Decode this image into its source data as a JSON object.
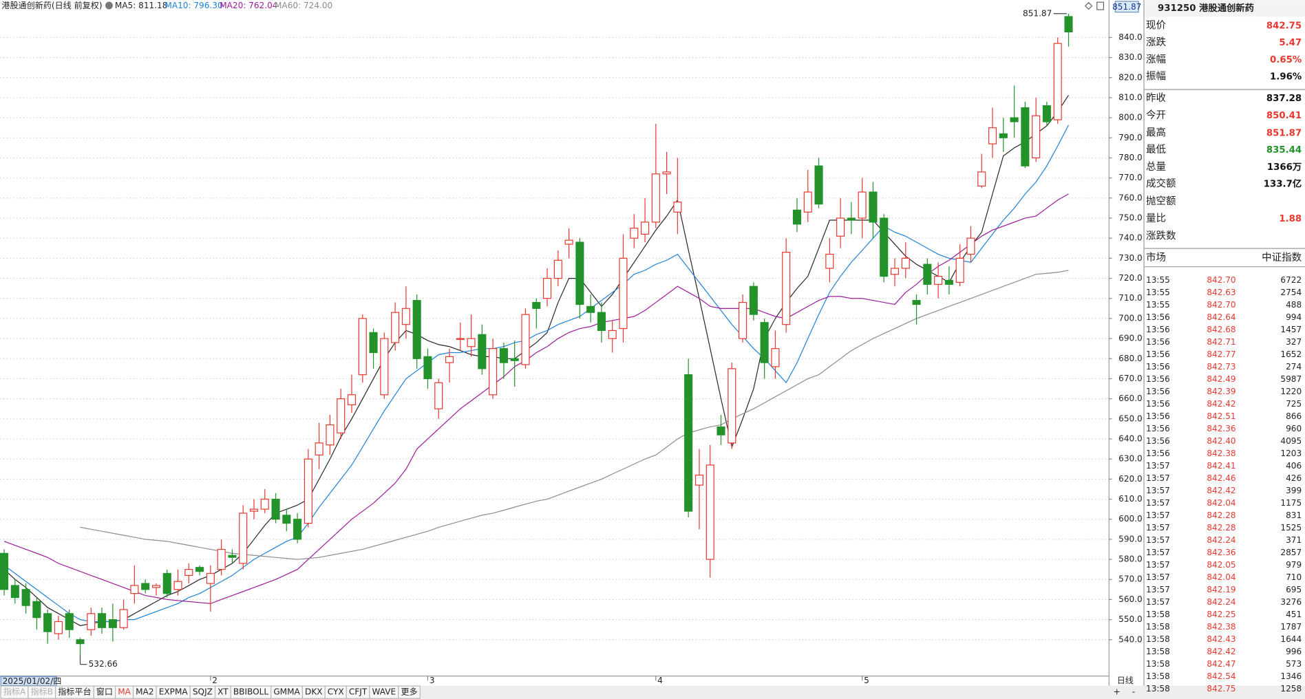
{
  "chart_data": {
    "type": "candlestick",
    "title": "港股通创新药(日线 前复权)",
    "categories": [
      "2025/01/02/四",
      null,
      null,
      null,
      null,
      null,
      null,
      null,
      null,
      null,
      null,
      null,
      null,
      null,
      null,
      null,
      null,
      null,
      null,
      "2",
      null,
      null,
      null,
      null,
      null,
      null,
      null,
      null,
      null,
      null,
      null,
      null,
      null,
      null,
      null,
      null,
      null,
      null,
      null,
      "3",
      null,
      null,
      null,
      null,
      null,
      null,
      null,
      null,
      null,
      null,
      null,
      null,
      null,
      null,
      null,
      null,
      null,
      null,
      null,
      null,
      "4",
      null,
      null,
      null,
      null,
      null,
      null,
      null,
      null,
      null,
      null,
      null,
      null,
      null,
      null,
      null,
      null,
      null,
      null,
      "5",
      null,
      null,
      null,
      null,
      null,
      null,
      null,
      null,
      null,
      null,
      null,
      null,
      null,
      null,
      null,
      null,
      null,
      null,
      null
    ],
    "open": [
      583,
      567,
      565,
      559,
      553,
      543,
      553,
      540,
      545,
      553,
      550,
      546,
      563,
      568,
      566,
      573,
      565,
      572,
      576,
      568,
      575,
      582,
      578,
      604,
      605,
      610,
      602,
      600,
      598,
      632,
      637,
      643,
      657,
      672,
      693,
      662,
      688,
      697,
      709,
      681,
      655,
      678,
      690,
      686,
      692,
      662,
      685,
      680,
      677,
      708,
      710,
      720,
      737,
      738,
      706,
      703,
      690,
      695,
      740,
      742,
      748,
      772,
      753,
      672,
      617,
      580,
      646,
      638,
      690,
      716,
      698,
      676,
      697,
      754,
      753,
      776,
      725,
      741,
      750,
      750,
      763,
      750,
      722,
      725,
      709,
      727,
      717,
      719,
      718,
      732,
      766,
      787,
      792,
      800,
      805,
      780,
      806,
      799,
      850.41
    ],
    "high": [
      585,
      570,
      568,
      561,
      555,
      552,
      555,
      541,
      556,
      556,
      558,
      560,
      577,
      570,
      568,
      575,
      575,
      578,
      577,
      577,
      590,
      585,
      607,
      610,
      615,
      613,
      605,
      603,
      635,
      648,
      652,
      665,
      672,
      702,
      695,
      693,
      708,
      716,
      712,
      685,
      670,
      685,
      698,
      702,
      697,
      690,
      688,
      689,
      705,
      710,
      725,
      734,
      745,
      740,
      712,
      708,
      699,
      742,
      752,
      760,
      797,
      783,
      780,
      680,
      635,
      637,
      652,
      678,
      712,
      718,
      700,
      694,
      740,
      760,
      774,
      780,
      740,
      760,
      758,
      770,
      768,
      752,
      730,
      738,
      712,
      730,
      728,
      726,
      737,
      746,
      782,
      805,
      800,
      816,
      808,
      810,
      808,
      840,
      851.87
    ],
    "low": [
      562,
      558,
      553,
      545,
      538,
      540,
      541,
      532.66,
      542,
      543,
      539,
      545,
      558,
      563,
      562,
      561,
      562,
      568,
      572,
      554,
      572,
      578,
      575,
      600,
      603,
      598,
      594,
      588,
      596,
      625,
      632,
      640,
      653,
      668,
      675,
      660,
      684,
      690,
      675,
      665,
      650,
      668,
      684,
      681,
      672,
      660,
      670,
      666,
      675,
      695,
      706,
      716,
      730,
      700,
      698,
      688,
      683,
      688,
      735,
      738,
      745,
      762,
      742,
      601,
      595,
      571,
      637,
      635,
      688,
      699,
      670,
      670,
      693,
      743,
      748,
      755,
      718,
      735,
      742,
      740,
      740,
      718,
      716,
      720,
      697,
      712,
      710,
      712,
      716,
      728,
      765,
      780,
      783,
      790,
      775,
      778,
      796,
      797,
      835.44
    ],
    "close": [
      565,
      561,
      557,
      551,
      544,
      549,
      545,
      538,
      553,
      546,
      546,
      555,
      567,
      565,
      567,
      563,
      569,
      575,
      574,
      573,
      585,
      581,
      603,
      605,
      610,
      600,
      598,
      590,
      630,
      638,
      647,
      660,
      662,
      700,
      683,
      690,
      703,
      705,
      680,
      670,
      668,
      681,
      690,
      690,
      675,
      685,
      678,
      679,
      702,
      705,
      720,
      729,
      739,
      707,
      703,
      694,
      694,
      730,
      745,
      748,
      772,
      773,
      758,
      604,
      622,
      627,
      642,
      675,
      708,
      702,
      678,
      685,
      733,
      747,
      763,
      757,
      732,
      750,
      749,
      763,
      748,
      721,
      725,
      730,
      707,
      717,
      721,
      717,
      730,
      740,
      773,
      795,
      790,
      798,
      776,
      801,
      798,
      837,
      842.75
    ],
    "up_color": "#e8382f",
    "down_color": "#23922a",
    "ma_series": [
      {
        "name": "MA5",
        "label": "MA5: 811.18",
        "color": "#262626",
        "values": [
          575,
          570,
          566,
          561,
          556,
          553,
          550,
          547,
          548,
          549,
          549,
          550,
          553,
          556,
          559,
          562,
          564,
          567,
          570,
          572,
          575,
          578,
          583,
          590,
          597,
          603,
          605,
          607,
          610,
          620,
          630,
          641,
          650,
          660,
          670,
          680,
          688,
          694,
          692,
          689,
          687,
          686,
          684,
          682,
          681,
          681,
          680,
          680,
          684,
          688,
          693,
          708,
          720,
          720,
          713,
          706,
          712,
          720,
          728,
          736,
          744,
          751,
          759,
          734,
          710,
          685,
          660,
          636,
          650,
          665,
          690,
          700,
          708,
          715,
          721,
          735,
          749,
          749,
          749,
          749,
          749,
          743,
          737,
          731,
          727,
          724,
          721,
          718,
          728,
          736,
          743,
          762,
          781,
          785,
          788,
          792,
          796,
          803,
          811.18
        ]
      },
      {
        "name": "MA10",
        "label": "MA10: 796.30",
        "color": "#1e82d6",
        "values": [
          577,
          573,
          569,
          565,
          561,
          557,
          553,
          550,
          549,
          549,
          549,
          550,
          550,
          552,
          554,
          556,
          558,
          561,
          563,
          566,
          569,
          572,
          576,
          580,
          583,
          586,
          589,
          591,
          598,
          606,
          613,
          620,
          627,
          636,
          645,
          654,
          662,
          670,
          674,
          678,
          682,
          683,
          683,
          684,
          685,
          685,
          686,
          688,
          689,
          692,
          694,
          697,
          699,
          701,
          705,
          709,
          713,
          717,
          722,
          724,
          727,
          729,
          732,
          725,
          718,
          711,
          704,
          697,
          691,
          685,
          680,
          674,
          668,
          678,
          690,
          702,
          713,
          721,
          728,
          734,
          740,
          746,
          743,
          741,
          738,
          735,
          732,
          730,
          729,
          728,
          735,
          742,
          749,
          755,
          762,
          768,
          776,
          786,
          796.3
        ]
      },
      {
        "name": "MA20",
        "label": "MA20: 762.04",
        "color": "#9c1c98",
        "values": [
          589,
          587,
          585,
          583,
          581,
          578,
          576,
          574,
          572,
          570,
          568,
          566,
          564,
          562,
          561,
          560,
          559.5,
          559,
          558.5,
          558,
          560,
          562,
          564,
          566,
          568,
          570,
          572.5,
          575,
          580,
          585,
          590,
          595,
          600,
          604,
          608,
          613,
          618,
          625,
          635,
          640,
          645,
          650,
          655,
          659,
          663,
          667,
          671,
          676,
          679,
          683,
          686,
          690,
          693,
          695,
          696,
          698,
          699,
          700,
          701,
          704,
          708,
          712,
          716,
          713,
          710,
          706,
          705,
          705,
          705,
          705,
          703,
          701,
          700,
          703,
          706,
          709,
          711,
          711,
          710,
          710,
          709,
          708,
          707,
          713,
          717,
          722,
          726,
          729,
          733,
          737,
          741,
          744,
          746,
          748,
          750,
          751,
          755,
          759,
          762.04
        ]
      },
      {
        "name": "MA60",
        "label": "MA60: 724.00",
        "color": "#8c8c8c",
        "values": [
          null,
          null,
          null,
          null,
          null,
          null,
          null,
          596,
          595,
          594,
          593,
          592,
          591,
          590,
          589.5,
          589,
          588,
          587,
          586,
          585,
          584,
          583,
          582.5,
          582,
          581.5,
          581,
          580.5,
          580,
          580.5,
          581,
          582,
          583,
          584,
          585,
          586.5,
          588,
          589.5,
          591,
          592.5,
          594,
          596,
          597.5,
          599,
          600.5,
          602,
          603,
          604.5,
          606,
          607.5,
          609,
          610,
          612,
          614,
          616,
          618,
          620,
          622.5,
          625,
          627.5,
          630,
          632,
          636,
          640,
          643,
          644.5,
          646,
          647,
          650,
          652.5,
          655,
          658,
          661,
          664,
          667,
          670,
          672,
          676,
          680,
          684,
          687,
          690,
          692.5,
          695,
          697.5,
          700,
          702,
          704,
          706,
          708,
          710,
          712,
          714,
          716,
          718,
          720,
          722,
          722.5,
          723,
          724
        ]
      }
    ],
    "ylim": [
      522.1,
      852.8
    ],
    "yticks": [
      {
        "value": 540,
        "label": "540.0"
      },
      {
        "value": 550,
        "label": "550.0"
      },
      {
        "value": 560,
        "label": "560.0"
      },
      {
        "value": 570,
        "label": "570.0"
      },
      {
        "value": 580,
        "label": "580.0"
      },
      {
        "value": 590,
        "label": "590.0"
      },
      {
        "value": 600,
        "label": "600.0"
      },
      {
        "value": 610,
        "label": "610.0"
      },
      {
        "value": 620,
        "label": "620.0"
      },
      {
        "value": 630,
        "label": "630.0"
      },
      {
        "value": 640,
        "label": "640.0"
      },
      {
        "value": 650,
        "label": "650.0"
      },
      {
        "value": 660,
        "label": "660.0"
      },
      {
        "value": 670,
        "label": "670.0"
      },
      {
        "value": 680,
        "label": "680.0"
      },
      {
        "value": 690,
        "label": "690.0"
      },
      {
        "value": 700,
        "label": "700.0"
      },
      {
        "value": 710,
        "label": "710.0"
      },
      {
        "value": 720,
        "label": "720.0"
      },
      {
        "value": 730,
        "label": "730.0"
      },
      {
        "value": 740,
        "label": "740.0"
      },
      {
        "value": 750,
        "label": "750.0"
      },
      {
        "value": 760,
        "label": "760.0"
      },
      {
        "value": 770,
        "label": "770.0"
      },
      {
        "value": 780,
        "label": "780.0"
      },
      {
        "value": 790,
        "label": "790.0"
      },
      {
        "value": 800,
        "label": "800.0"
      },
      {
        "value": 810,
        "label": "810.0"
      },
      {
        "value": 820,
        "label": "820.0"
      },
      {
        "value": 830,
        "label": "830.0"
      },
      {
        "value": 840,
        "label": "840.0"
      }
    ],
    "grid": true,
    "high_label": "851.87",
    "low_label": "532.66",
    "axis_tag": "851.87"
  },
  "toolbar": {
    "tabs": [
      {
        "text": "指标A",
        "color": "#b0b0b0"
      },
      {
        "text": "指标B",
        "color": "#b0b0b0"
      },
      {
        "text": "指标平台",
        "color": "#222222"
      },
      {
        "text": "窗口",
        "color": "#222222"
      },
      {
        "text": "MA",
        "color": "#e8382f"
      },
      {
        "text": "MA2",
        "color": "#222222"
      },
      {
        "text": "EXPMA",
        "color": "#222222"
      },
      {
        "text": "SQJZ",
        "color": "#222222"
      },
      {
        "text": "XT",
        "color": "#222222"
      },
      {
        "text": "BBIBOLL",
        "color": "#222222"
      },
      {
        "text": "GMMA",
        "color": "#222222"
      },
      {
        "text": "DKX",
        "color": "#222222"
      },
      {
        "text": "CYX",
        "color": "#222222"
      },
      {
        "text": "CFJT",
        "color": "#222222"
      },
      {
        "text": "WAVE",
        "color": "#222222"
      },
      {
        "text": "更多",
        "color": "#222222"
      }
    ],
    "period": "日线",
    "zoom_in": "+",
    "zoom_out": "-"
  },
  "quote": {
    "title": "931250 港股通创新药",
    "groups": [
      [
        {
          "label": "现价",
          "value": "842.75",
          "color": "#e8382f"
        },
        {
          "label": "涨跌",
          "value": "5.47",
          "color": "#e8382f"
        },
        {
          "label": "涨幅",
          "value": "0.65%",
          "color": "#e8382f"
        },
        {
          "label": "振幅",
          "value": "1.96%",
          "color": "#111111"
        }
      ],
      [
        {
          "label": "昨收",
          "value": "837.28",
          "color": "#111111"
        },
        {
          "label": "今开",
          "value": "850.41",
          "color": "#e8382f"
        },
        {
          "label": "最高",
          "value": "851.87",
          "color": "#e8382f"
        },
        {
          "label": "最低",
          "value": "835.44",
          "color": "#23922a"
        },
        {
          "label": "总量",
          "value": "1366万",
          "color": "#111111"
        },
        {
          "label": "成交额",
          "value": "133.7亿",
          "color": "#111111"
        },
        {
          "label": "抛空额"
        },
        {
          "label": "量比",
          "value": "1.88",
          "color": "#e8382f"
        },
        {
          "label": "涨跌数"
        }
      ]
    ],
    "market": {
      "label": "市场",
      "value": "中证指数"
    },
    "price_color": "#e8382f",
    "ticks": [
      [
        "13:55",
        "842.70",
        "6722"
      ],
      [
        "13:55",
        "842.63",
        "2754"
      ],
      [
        "13:55",
        "842.70",
        "488"
      ],
      [
        "13:56",
        "842.64",
        "994"
      ],
      [
        "13:56",
        "842.68",
        "1457"
      ],
      [
        "13:56",
        "842.71",
        "327"
      ],
      [
        "13:56",
        "842.77",
        "1652"
      ],
      [
        "13:56",
        "842.73",
        "274"
      ],
      [
        "13:56",
        "842.49",
        "5987"
      ],
      [
        "13:56",
        "842.39",
        "1220"
      ],
      [
        "13:56",
        "842.42",
        "725"
      ],
      [
        "13:56",
        "842.51",
        "866"
      ],
      [
        "13:56",
        "842.36",
        "960"
      ],
      [
        "13:56",
        "842.40",
        "4095"
      ],
      [
        "13:56",
        "842.38",
        "1203"
      ],
      [
        "13:57",
        "842.41",
        "406"
      ],
      [
        "13:57",
        "842.46",
        "426"
      ],
      [
        "13:57",
        "842.42",
        "399"
      ],
      [
        "13:57",
        "842.04",
        "1175"
      ],
      [
        "13:57",
        "842.28",
        "831"
      ],
      [
        "13:57",
        "842.28",
        "1525"
      ],
      [
        "13:57",
        "842.24",
        "371"
      ],
      [
        "13:57",
        "842.36",
        "2857"
      ],
      [
        "13:57",
        "842.05",
        "979"
      ],
      [
        "13:57",
        "842.04",
        "710"
      ],
      [
        "13:57",
        "842.19",
        "695"
      ],
      [
        "13:57",
        "842.24",
        "3276"
      ],
      [
        "13:58",
        "842.25",
        "451"
      ],
      [
        "13:58",
        "842.38",
        "1787"
      ],
      [
        "13:58",
        "842.43",
        "1644"
      ],
      [
        "13:58",
        "842.42",
        "996"
      ],
      [
        "13:58",
        "842.47",
        "573"
      ],
      [
        "13:58",
        "842.54",
        "1346"
      ],
      [
        "13:58",
        "842.75",
        "1258"
      ]
    ]
  }
}
